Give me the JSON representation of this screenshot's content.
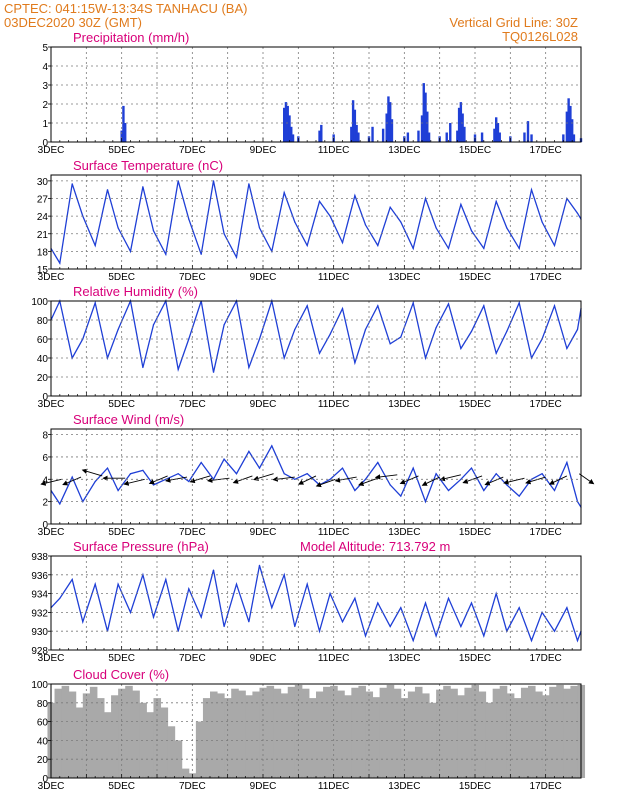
{
  "header": {
    "line1_left": "CPTEC:   041:15W-13:34S   TANHACU (BA)",
    "line2_left": "03DEC2020 30Z (GMT)",
    "line1_right": "Vertical Grid Line: 30Z",
    "line2_right": "TQ0126L028"
  },
  "colors": {
    "header": "#e07b1d",
    "title": "#d8007a",
    "series": "#1f3fd6",
    "cloud": "#a9a9a9",
    "grid": "#7a7a7a"
  },
  "x_axis": {
    "labels": [
      "3DEC",
      "5DEC",
      "7DEC",
      "9DEC",
      "11DEC",
      "13DEC",
      "15DEC",
      "17DEC"
    ],
    "day_range": [
      3.0,
      18.0
    ]
  },
  "chart_data": [
    {
      "id": "precip",
      "type": "bar",
      "title": "Precipitation (mm/h)",
      "ylim": [
        0,
        5
      ],
      "yticks": [
        "0",
        "1",
        "2",
        "3",
        "4",
        "5"
      ],
      "x": [
        5.0,
        5.05,
        5.1,
        9.6,
        9.65,
        9.7,
        9.75,
        9.8,
        9.85,
        10.0,
        10.6,
        10.65,
        11.0,
        11.5,
        11.55,
        11.6,
        11.65,
        11.7,
        12.0,
        12.1,
        12.4,
        12.5,
        12.55,
        12.6,
        12.65,
        13.0,
        13.1,
        13.4,
        13.5,
        13.55,
        13.6,
        13.65,
        13.7,
        14.0,
        14.2,
        14.3,
        14.5,
        14.55,
        14.6,
        14.65,
        14.7,
        15.0,
        15.2,
        15.55,
        15.6,
        15.65,
        15.7,
        16.0,
        16.4,
        16.5,
        16.6,
        17.5,
        17.6,
        17.65,
        17.7,
        17.75,
        17.8,
        18.0
      ],
      "values": [
        0.6,
        1.9,
        1.0,
        1.8,
        2.1,
        1.9,
        1.4,
        0.8,
        0.4,
        0.3,
        0.6,
        0.9,
        0.4,
        0.8,
        2.2,
        1.7,
        0.9,
        0.5,
        0.3,
        0.8,
        0.7,
        1.5,
        2.4,
        2.1,
        1.2,
        0.3,
        0.5,
        0.6,
        1.4,
        3.1,
        2.6,
        1.6,
        0.5,
        0.3,
        0.5,
        1.0,
        0.6,
        1.8,
        2.1,
        1.5,
        0.8,
        0.4,
        0.5,
        0.7,
        1.3,
        1.0,
        0.5,
        0.3,
        0.5,
        1.1,
        0.4,
        0.4,
        1.6,
        2.3,
        1.9,
        1.2,
        0.4,
        0.2
      ]
    },
    {
      "id": "temp",
      "type": "line",
      "title": "Surface Temperature (nC)",
      "ylim": [
        15,
        31
      ],
      "yticks": [
        "15",
        "18",
        "21",
        "24",
        "27",
        "30"
      ],
      "x": [
        3.0,
        3.25,
        3.6,
        3.9,
        4.25,
        4.6,
        4.9,
        5.25,
        5.6,
        5.9,
        6.25,
        6.6,
        6.9,
        7.25,
        7.6,
        7.9,
        8.25,
        8.6,
        8.9,
        9.25,
        9.6,
        9.9,
        10.25,
        10.6,
        10.9,
        11.25,
        11.6,
        11.9,
        12.25,
        12.6,
        12.9,
        13.25,
        13.6,
        13.9,
        14.25,
        14.6,
        14.9,
        15.25,
        15.6,
        15.9,
        16.25,
        16.6,
        16.9,
        17.25,
        17.6,
        17.9,
        18.0
      ],
      "values": [
        18.5,
        16.0,
        29.5,
        24.0,
        19.0,
        28.5,
        22.0,
        18.0,
        29.0,
        21.5,
        17.5,
        30.0,
        23.5,
        17.5,
        30.0,
        21.0,
        17.0,
        29.5,
        22.0,
        18.0,
        28.0,
        23.0,
        19.0,
        26.5,
        24.0,
        19.5,
        27.5,
        22.5,
        19.0,
        25.5,
        23.0,
        18.5,
        27.0,
        22.0,
        18.5,
        26.0,
        21.5,
        18.5,
        26.5,
        22.0,
        18.5,
        28.5,
        23.0,
        19.0,
        27.0,
        24.5,
        23.5
      ]
    },
    {
      "id": "rh",
      "type": "line",
      "title": "Relative Humidity (%)",
      "ylim": [
        0,
        100
      ],
      "yticks": [
        "0",
        "20",
        "40",
        "60",
        "80",
        "100"
      ],
      "x": [
        3.0,
        3.25,
        3.6,
        3.9,
        4.25,
        4.6,
        4.9,
        5.25,
        5.6,
        5.9,
        6.25,
        6.6,
        6.9,
        7.25,
        7.6,
        7.9,
        8.25,
        8.6,
        8.9,
        9.25,
        9.6,
        9.9,
        10.25,
        10.6,
        10.9,
        11.25,
        11.6,
        11.9,
        12.25,
        12.6,
        12.9,
        13.25,
        13.6,
        13.9,
        14.25,
        14.6,
        14.9,
        15.25,
        15.6,
        15.9,
        16.25,
        16.6,
        16.9,
        17.25,
        17.6,
        17.9,
        18.0
      ],
      "values": [
        80,
        100,
        40,
        60,
        98,
        40,
        70,
        100,
        30,
        75,
        100,
        28,
        60,
        100,
        25,
        75,
        100,
        30,
        60,
        100,
        40,
        70,
        95,
        45,
        65,
        92,
        35,
        70,
        95,
        55,
        62,
        98,
        40,
        72,
        97,
        50,
        68,
        95,
        45,
        68,
        98,
        40,
        60,
        95,
        50,
        70,
        92
      ]
    },
    {
      "id": "wind",
      "type": "line",
      "title": "Surface Wind (m/s)",
      "ylim": [
        0,
        8.5
      ],
      "yticks": [
        "0",
        "2",
        "4",
        "6",
        "8"
      ],
      "x": [
        3.0,
        3.25,
        3.6,
        3.9,
        4.25,
        4.6,
        4.9,
        5.25,
        5.6,
        5.9,
        6.25,
        6.6,
        6.9,
        7.25,
        7.6,
        7.9,
        8.25,
        8.6,
        8.9,
        9.25,
        9.6,
        9.9,
        10.25,
        10.6,
        10.9,
        11.25,
        11.6,
        11.9,
        12.25,
        12.6,
        12.9,
        13.25,
        13.6,
        13.9,
        14.25,
        14.6,
        14.9,
        15.25,
        15.6,
        15.9,
        16.25,
        16.6,
        16.9,
        17.25,
        17.6,
        17.9,
        18.0
      ],
      "values": [
        3.0,
        1.8,
        4.2,
        2.0,
        3.8,
        5.0,
        3.0,
        4.5,
        4.8,
        3.5,
        4.0,
        4.5,
        3.8,
        5.5,
        4.0,
        5.8,
        4.5,
        6.5,
        5.0,
        7.0,
        4.5,
        4.0,
        4.5,
        3.5,
        4.0,
        5.0,
        3.0,
        4.0,
        5.5,
        3.5,
        2.5,
        5.0,
        2.0,
        4.5,
        3.0,
        4.0,
        5.0,
        3.0,
        4.5,
        3.5,
        2.5,
        4.0,
        4.5,
        3.0,
        5.5,
        2.0,
        1.5
      ],
      "arrows": {
        "x": [
          3.3,
          3.85,
          4.45,
          5.1,
          5.65,
          6.3,
          6.85,
          7.5,
          8.05,
          8.7,
          9.3,
          9.9,
          10.5,
          11.05,
          11.65,
          12.25,
          12.8,
          13.4,
          14.0,
          14.6,
          15.2,
          15.8,
          16.4,
          17.0,
          17.6,
          17.95
        ],
        "y": [
          4.0,
          4.2,
          4.3,
          4.1,
          4.0,
          4.3,
          4.2,
          4.3,
          4.1,
          4.3,
          4.5,
          4.2,
          4.3,
          4.0,
          4.2,
          4.1,
          4.4,
          4.3,
          4.2,
          4.4,
          4.3,
          4.2,
          4.1,
          4.2,
          4.3,
          4.5
        ],
        "dx": [
          -1,
          -1,
          -1,
          -1,
          -1,
          -1,
          -1,
          -1,
          -1,
          -1,
          -1,
          -1,
          -1,
          -1,
          -1,
          -1,
          -1,
          -1,
          -1,
          -1,
          -1,
          -1,
          -1,
          -1,
          -1,
          0.6
        ],
        "dy": [
          -0.4,
          -0.7,
          0.5,
          0.0,
          -0.4,
          -0.7,
          -0.3,
          -0.5,
          -0.2,
          -0.6,
          -0.5,
          -0.2,
          -0.8,
          -0.6,
          -0.3,
          -0.6,
          -0.2,
          -0.7,
          -0.8,
          -0.4,
          -0.6,
          -0.7,
          -0.4,
          -0.5,
          -0.8,
          -0.7
        ]
      }
    },
    {
      "id": "pres",
      "type": "line",
      "title": "Surface Pressure (hPa)",
      "annotation": "Model Altitude: 713.792 m",
      "ylim": [
        928,
        938
      ],
      "yticks": [
        "928",
        "930",
        "932",
        "934",
        "936",
        "938"
      ],
      "x": [
        3.0,
        3.25,
        3.6,
        3.9,
        4.25,
        4.6,
        4.9,
        5.25,
        5.6,
        5.9,
        6.25,
        6.6,
        6.9,
        7.25,
        7.6,
        7.9,
        8.25,
        8.6,
        8.9,
        9.25,
        9.6,
        9.9,
        10.25,
        10.6,
        10.9,
        11.25,
        11.6,
        11.9,
        12.25,
        12.6,
        12.9,
        13.25,
        13.6,
        13.9,
        14.25,
        14.6,
        14.9,
        15.25,
        15.6,
        15.9,
        16.25,
        16.6,
        16.9,
        17.25,
        17.6,
        17.9,
        18.0
      ],
      "values": [
        932.5,
        933.5,
        935.5,
        931.0,
        935.0,
        930.0,
        935.0,
        932.0,
        936.0,
        931.5,
        935.5,
        930.0,
        934.5,
        931.5,
        936.5,
        930.5,
        935.0,
        931.0,
        937.0,
        932.5,
        936.0,
        930.5,
        935.0,
        930.0,
        934.0,
        931.0,
        933.5,
        929.5,
        933.0,
        930.5,
        932.5,
        929.0,
        933.0,
        929.5,
        933.5,
        930.5,
        933.0,
        929.5,
        934.0,
        930.0,
        932.5,
        929.0,
        932.0,
        930.0,
        932.5,
        929.0,
        930.0
      ]
    },
    {
      "id": "cloud",
      "type": "area",
      "title": "Cloud Cover (%)",
      "ylim": [
        0,
        100
      ],
      "yticks": [
        "0",
        "20",
        "40",
        "60",
        "80",
        "100"
      ],
      "x": [
        3.0,
        3.2,
        3.4,
        3.6,
        3.8,
        4.0,
        4.2,
        4.4,
        4.6,
        4.8,
        5.0,
        5.2,
        5.4,
        5.6,
        5.8,
        6.0,
        6.2,
        6.4,
        6.6,
        6.8,
        7.0,
        7.2,
        7.4,
        7.6,
        7.8,
        8.0,
        8.2,
        8.4,
        8.6,
        8.8,
        9.0,
        9.2,
        9.4,
        9.6,
        9.8,
        10.0,
        10.2,
        10.4,
        10.6,
        10.8,
        11.0,
        11.2,
        11.4,
        11.6,
        11.8,
        12.0,
        12.2,
        12.4,
        12.6,
        12.8,
        13.0,
        13.2,
        13.4,
        13.6,
        13.8,
        14.0,
        14.2,
        14.4,
        14.6,
        14.8,
        15.0,
        15.2,
        15.4,
        15.6,
        15.8,
        16.0,
        16.2,
        16.4,
        16.6,
        16.8,
        17.0,
        17.2,
        17.4,
        17.6,
        17.8,
        18.0
      ],
      "values": [
        80,
        95,
        98,
        92,
        75,
        90,
        97,
        85,
        70,
        88,
        95,
        98,
        93,
        80,
        70,
        85,
        75,
        55,
        40,
        10,
        5,
        60,
        85,
        92,
        90,
        85,
        95,
        93,
        88,
        92,
        96,
        98,
        95,
        90,
        97,
        99,
        95,
        85,
        92,
        97,
        98,
        93,
        88,
        96,
        98,
        92,
        86,
        96,
        99,
        95,
        85,
        92,
        97,
        90,
        80,
        94,
        98,
        95,
        88,
        96,
        99,
        92,
        80,
        95,
        98,
        90,
        85,
        96,
        98,
        92,
        88,
        97,
        99,
        95,
        98,
        99
      ]
    }
  ]
}
